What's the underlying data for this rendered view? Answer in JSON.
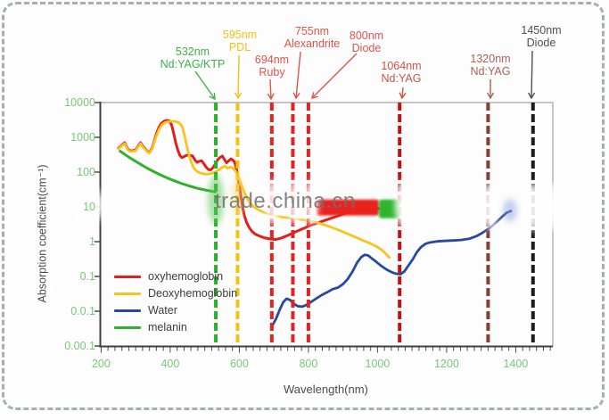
{
  "watermark": {
    "text": "trade.china.cn"
  },
  "chart_data": {
    "type": "line",
    "title": "",
    "xlabel": "Wavelength(nm)",
    "ylabel": "Absorption coefficient(cm⁻¹)",
    "x_scale": "linear",
    "y_scale": "log",
    "xlim": [
      200,
      1507
    ],
    "ylim": [
      0.001,
      10000
    ],
    "grid": false,
    "legend_position": "lower-left",
    "x_ticks": [
      200,
      400,
      600,
      800,
      1000,
      1200,
      1400
    ],
    "x_tick_labels": [
      "200",
      "400",
      "600",
      "800",
      "1000",
      "1200",
      "1400"
    ],
    "y_tick_values": [
      10000,
      1000,
      100,
      10,
      1,
      0.1,
      0.01,
      0.001
    ],
    "y_tick_labels": [
      "10000",
      "1000",
      "100",
      "10",
      "1",
      "0.1",
      "0.0.1",
      "0.00.1"
    ],
    "legend": [
      {
        "label": "oxyhemoglobin",
        "color": "#e0201d"
      },
      {
        "label": "Deoxyhemoglobin",
        "color": "#f6c41c"
      },
      {
        "label": "Water",
        "color": "#26489f"
      },
      {
        "label": "melanin",
        "color": "#2cb32c"
      }
    ],
    "series": [
      {
        "name": "oxyhemoglobin",
        "color": "#e0201d",
        "width": 3,
        "points": [
          [
            250,
            490
          ],
          [
            260,
            600
          ],
          [
            268,
            700
          ],
          [
            276,
            480
          ],
          [
            283,
            410
          ],
          [
            292,
            415
          ],
          [
            300,
            430
          ],
          [
            307,
            560
          ],
          [
            314,
            700
          ],
          [
            320,
            560
          ],
          [
            327,
            480
          ],
          [
            334,
            390
          ],
          [
            340,
            365
          ],
          [
            348,
            500
          ],
          [
            354,
            800
          ],
          [
            360,
            1250
          ],
          [
            367,
            1900
          ],
          [
            374,
            2500
          ],
          [
            382,
            2900
          ],
          [
            390,
            3050
          ],
          [
            397,
            3000
          ],
          [
            404,
            2300
          ],
          [
            410,
            1300
          ],
          [
            416,
            700
          ],
          [
            422,
            430
          ],
          [
            428,
            300
          ],
          [
            434,
            260
          ],
          [
            440,
            280
          ],
          [
            446,
            300
          ],
          [
            452,
            310
          ],
          [
            458,
            300
          ],
          [
            465,
            290
          ],
          [
            472,
            220
          ],
          [
            478,
            190
          ],
          [
            484,
            205
          ],
          [
            491,
            210
          ],
          [
            498,
            170
          ],
          [
            504,
            138
          ],
          [
            511,
            118
          ],
          [
            517,
            116
          ],
          [
            524,
            135
          ],
          [
            531,
            175
          ],
          [
            538,
            230
          ],
          [
            544,
            265
          ],
          [
            551,
            290
          ],
          [
            557,
            230
          ],
          [
            563,
            185
          ],
          [
            569,
            210
          ],
          [
            576,
            240
          ],
          [
            581,
            225
          ],
          [
            586,
            195
          ],
          [
            590,
            150
          ],
          [
            594,
            95
          ],
          [
            598,
            55
          ],
          [
            602,
            30
          ],
          [
            606,
            16
          ],
          [
            610,
            9
          ],
          [
            615,
            5.5
          ],
          [
            621,
            3.6
          ],
          [
            628,
            2.6
          ],
          [
            636,
            2.0
          ],
          [
            646,
            1.65
          ],
          [
            658,
            1.45
          ],
          [
            672,
            1.3
          ],
          [
            688,
            1.2
          ],
          [
            704,
            1.15
          ],
          [
            720,
            1.25
          ],
          [
            736,
            1.45
          ],
          [
            754,
            1.75
          ],
          [
            772,
            2.1
          ],
          [
            790,
            2.5
          ],
          [
            808,
            3.0
          ],
          [
            828,
            3.5
          ],
          [
            848,
            4.1
          ],
          [
            868,
            4.8
          ],
          [
            888,
            5.6
          ],
          [
            908,
            6.6
          ],
          [
            932,
            7.8
          ],
          [
            962,
            8.7
          ],
          [
            988,
            9.0
          ],
          [
            1004,
            9.0
          ]
        ]
      },
      {
        "name": "Deoxyhemoglobin",
        "color": "#f6c41c",
        "width": 2.8,
        "points": [
          [
            250,
            470
          ],
          [
            260,
            570
          ],
          [
            268,
            660
          ],
          [
            276,
            460
          ],
          [
            283,
            390
          ],
          [
            292,
            395
          ],
          [
            300,
            410
          ],
          [
            307,
            530
          ],
          [
            314,
            660
          ],
          [
            320,
            530
          ],
          [
            327,
            460
          ],
          [
            334,
            375
          ],
          [
            340,
            350
          ],
          [
            348,
            470
          ],
          [
            354,
            740
          ],
          [
            360,
            1100
          ],
          [
            368,
            1700
          ],
          [
            376,
            2300
          ],
          [
            386,
            2700
          ],
          [
            396,
            2850
          ],
          [
            406,
            2900
          ],
          [
            416,
            2850
          ],
          [
            426,
            2600
          ],
          [
            434,
            2100
          ],
          [
            440,
            1300
          ],
          [
            446,
            700
          ],
          [
            452,
            380
          ],
          [
            458,
            230
          ],
          [
            464,
            160
          ],
          [
            470,
            125
          ],
          [
            476,
            108
          ],
          [
            482,
            98
          ],
          [
            490,
            92
          ],
          [
            500,
            88
          ],
          [
            510,
            88
          ],
          [
            520,
            92
          ],
          [
            530,
            100
          ],
          [
            540,
            115
          ],
          [
            550,
            135
          ],
          [
            558,
            148
          ],
          [
            566,
            130
          ],
          [
            574,
            140
          ],
          [
            582,
            128
          ],
          [
            590,
            105
          ],
          [
            598,
            68
          ],
          [
            606,
            42
          ],
          [
            614,
            27
          ],
          [
            622,
            18
          ],
          [
            632,
            12.5
          ],
          [
            642,
            10
          ],
          [
            654,
            8.4
          ],
          [
            668,
            7.2
          ],
          [
            684,
            6.3
          ],
          [
            702,
            5.6
          ],
          [
            722,
            5.1
          ],
          [
            742,
            4.8
          ],
          [
            762,
            4.5
          ],
          [
            782,
            4.25
          ],
          [
            802,
            4.0
          ],
          [
            824,
            3.55
          ],
          [
            846,
            3.05
          ],
          [
            868,
            2.55
          ],
          [
            890,
            2.1
          ],
          [
            912,
            1.7
          ],
          [
            934,
            1.38
          ],
          [
            956,
            1.1
          ],
          [
            978,
            0.9
          ],
          [
            998,
            0.72
          ],
          [
            1012,
            0.58
          ],
          [
            1024,
            0.45
          ],
          [
            1034,
            0.35
          ]
        ]
      },
      {
        "name": "Water",
        "color": "#26489f",
        "width": 2.8,
        "points": [
          [
            695,
            0.0038
          ],
          [
            706,
            0.006
          ],
          [
            717,
            0.011
          ],
          [
            727,
            0.018
          ],
          [
            737,
            0.023
          ],
          [
            747,
            0.021
          ],
          [
            757,
            0.0165
          ],
          [
            769,
            0.014
          ],
          [
            781,
            0.0135
          ],
          [
            794,
            0.015
          ],
          [
            808,
            0.0185
          ],
          [
            822,
            0.023
          ],
          [
            838,
            0.029
          ],
          [
            854,
            0.035
          ],
          [
            870,
            0.043
          ],
          [
            886,
            0.048
          ],
          [
            900,
            0.06
          ],
          [
            914,
            0.085
          ],
          [
            928,
            0.14
          ],
          [
            941,
            0.25
          ],
          [
            953,
            0.36
          ],
          [
            963,
            0.42
          ],
          [
            973,
            0.4
          ],
          [
            985,
            0.32
          ],
          [
            997,
            0.26
          ],
          [
            1011,
            0.2
          ],
          [
            1025,
            0.16
          ],
          [
            1039,
            0.135
          ],
          [
            1053,
            0.12
          ],
          [
            1066,
            0.115
          ],
          [
            1078,
            0.14
          ],
          [
            1090,
            0.21
          ],
          [
            1102,
            0.31
          ],
          [
            1114,
            0.5
          ],
          [
            1126,
            0.7
          ],
          [
            1140,
            0.88
          ],
          [
            1154,
            0.96
          ],
          [
            1172,
            1.02
          ],
          [
            1192,
            1.05
          ],
          [
            1217,
            1.08
          ],
          [
            1242,
            1.12
          ],
          [
            1267,
            1.22
          ],
          [
            1287,
            1.45
          ],
          [
            1302,
            1.75
          ],
          [
            1317,
            2.2
          ],
          [
            1332,
            2.9
          ],
          [
            1347,
            3.9
          ],
          [
            1361,
            5.3
          ],
          [
            1374,
            6.8
          ],
          [
            1386,
            7.6
          ]
        ]
      },
      {
        "name": "melanin",
        "color": "#2cb32c",
        "width": 3,
        "points": [
          [
            255,
            400
          ],
          [
            280,
            270
          ],
          [
            305,
            190
          ],
          [
            330,
            135
          ],
          [
            355,
            100
          ],
          [
            380,
            76
          ],
          [
            405,
            60
          ],
          [
            430,
            48
          ],
          [
            455,
            40
          ],
          [
            480,
            34
          ],
          [
            505,
            30
          ],
          [
            530,
            27
          ]
        ]
      }
    ],
    "highlight_segments": [
      {
        "name": "oxyhemoglobin-thick-band",
        "color": "#e8231d",
        "x_nm": [
          823,
          1004
        ],
        "value": 9
      },
      {
        "name": "melanin-thick-band",
        "color": "#2fb52f",
        "x_nm": [
          1004,
          1066
        ],
        "value": 9
      }
    ],
    "lasers": [
      {
        "nm": 532,
        "lines": [
          "532nm",
          "Nd:YAG/KTP"
        ],
        "text_color": "#3cb24b",
        "line_color": "#29b229",
        "cx": 216,
        "ty": 51,
        "arrow": [
          219,
          80,
          241,
          111
        ]
      },
      {
        "nm": 595,
        "lines": [
          "595nm",
          "PDL"
        ],
        "text_color": "#eec11b",
        "line_color": "#f3c311",
        "cx": 269,
        "ty": 32,
        "arrow": [
          268,
          62,
          267,
          110
        ]
      },
      {
        "nm": 694,
        "lines": [
          "694nm",
          "Ruby"
        ],
        "text_color": "#e0534b",
        "line_color": "#e02422",
        "cx": 305,
        "ty": 60,
        "arrow": [
          303,
          89,
          304,
          111
        ]
      },
      {
        "nm": 755,
        "lines": [
          "755nm",
          "Alexandrite"
        ],
        "text_color": "#e0534b",
        "line_color": "#e02422",
        "cx": 350,
        "ty": 28,
        "arrow": [
          337,
          58,
          332,
          110
        ]
      },
      {
        "nm": 800,
        "lines": [
          "800nm",
          "Diode"
        ],
        "text_color": "#e0534b",
        "line_color": "#e02422",
        "cx": 411,
        "ty": 33,
        "arrow": [
          400,
          60,
          350,
          110
        ]
      },
      {
        "nm": 1064,
        "lines": [
          "1064nm",
          "Nd:YAG"
        ],
        "text_color": "#d05046",
        "line_color": "#bd1512",
        "cx": 450,
        "ty": 67,
        "arrow": [
          452,
          98,
          451,
          110
        ]
      },
      {
        "nm": 1320,
        "lines": [
          "1320nm",
          "Nd:YAG"
        ],
        "text_color": "#a8625a",
        "line_color": "#8e3c33",
        "cx": 550,
        "ty": 59,
        "arrow": [
          550,
          89,
          550,
          110
        ]
      },
      {
        "nm": 1450,
        "lines": [
          "1450nm",
          "Diode"
        ],
        "text_color": "#4f4f4f",
        "line_color": "#1c1c1c",
        "cx": 607,
        "ty": 27,
        "arrow": [
          597,
          57,
          596,
          110
        ]
      }
    ]
  }
}
